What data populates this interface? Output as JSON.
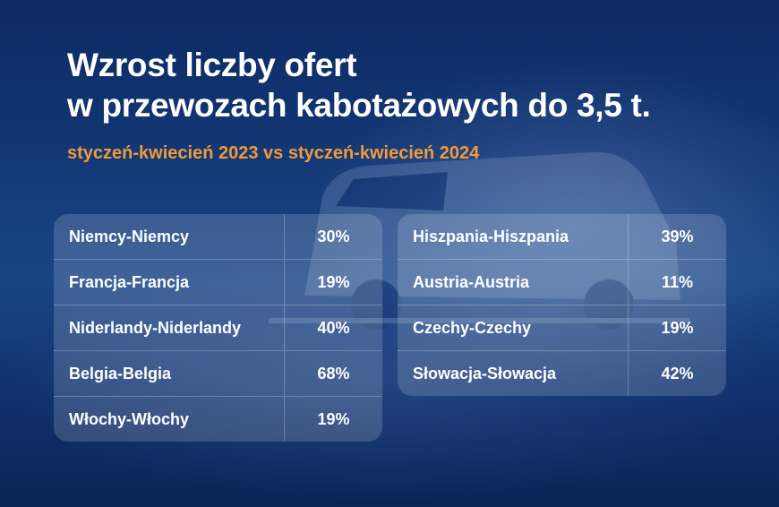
{
  "title": {
    "line1": "Wzrost liczby ofert",
    "line2": "w przewozach kabotażowych do 3,5 t."
  },
  "subtitle": "styczeń-kwiecień 2023 vs styczeń-kwiecień 2024",
  "colors": {
    "background": "#143a78",
    "accent": "#f19a3a",
    "text": "#ffffff"
  },
  "table_left": {
    "rows": [
      {
        "route": "Niemcy-Niemcy",
        "value": "30%"
      },
      {
        "route": "Francja-Francja",
        "value": "19%"
      },
      {
        "route": "Niderlandy-Niderlandy",
        "value": "40%"
      },
      {
        "route": "Belgia-Belgia",
        "value": "68%"
      },
      {
        "route": "Włochy-Włochy",
        "value": "19%"
      }
    ]
  },
  "table_right": {
    "rows": [
      {
        "route": "Hiszpania-Hiszpania",
        "value": "39%"
      },
      {
        "route": "Austria-Austria",
        "value": "11%"
      },
      {
        "route": "Czechy-Czechy",
        "value": "19%"
      },
      {
        "route": "Słowacja-Słowacja",
        "value": "42%"
      }
    ]
  }
}
